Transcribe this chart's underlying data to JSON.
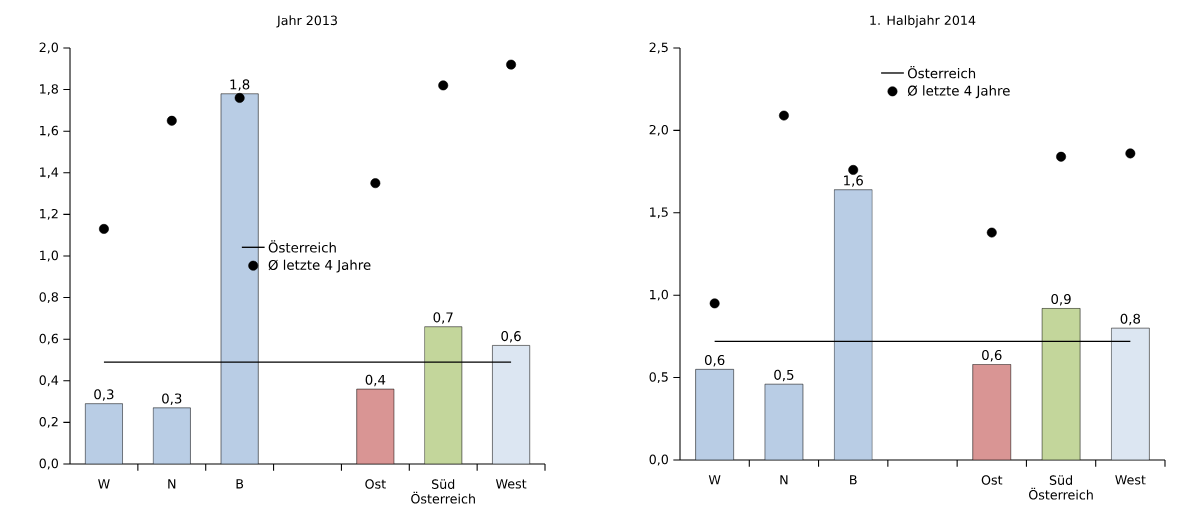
{
  "chart_data": [
    {
      "type": "bar",
      "title": "Jahr 2013",
      "categories": [
        "W",
        "N",
        "B",
        null,
        "Ost",
        "Süd Österreich",
        "West"
      ],
      "series": [
        {
          "colors": [
            "#b9cde5",
            "#b9cde5",
            "#b9cde5",
            "#b9cde5",
            "#d99594",
            "#c3d69b",
            "#dce6f2"
          ],
          "values": [
            0.29,
            0.27,
            1.78,
            null,
            0.36,
            0.66,
            0.57
          ],
          "value_labels": [
            "0,3",
            "0,3",
            "1,8",
            null,
            "0,4",
            "0,7",
            "0,6"
          ]
        },
        {
          "type": "line",
          "name": "Österreich",
          "color": "#000000",
          "values": [
            0.49,
            0.49,
            0.49,
            0.49,
            0.49,
            0.49,
            0.49
          ]
        },
        {
          "type": "scatter",
          "name": "Ø letzte 4 Jahre",
          "color": "#000000",
          "values": [
            1.13,
            1.65,
            1.76,
            null,
            1.35,
            1.82,
            1.92
          ]
        }
      ],
      "ylim": [
        0,
        2
      ],
      "yticks": [
        {
          "value": 0,
          "label": "0,0"
        },
        {
          "value": 0.2,
          "label": "0,2"
        },
        {
          "value": 0.4,
          "label": "0,4"
        },
        {
          "value": 0.6,
          "label": "0,6"
        },
        {
          "value": 0.8,
          "label": "0,8"
        },
        {
          "value": 1.0,
          "label": "1,0"
        },
        {
          "value": 1.2,
          "label": "1,2"
        },
        {
          "value": 1.4,
          "label": "1,4"
        },
        {
          "value": 1.6,
          "label": "1,6"
        },
        {
          "value": 1.8,
          "label": "1,8"
        },
        {
          "value": 2.0,
          "label": "2,0"
        }
      ],
      "legend": "center"
    },
    {
      "type": "bar",
      "title": "1. Halbjahr 2014",
      "categories": [
        "W",
        "N",
        "B",
        null,
        "Ost",
        "Süd Österreich",
        "West"
      ],
      "series": [
        {
          "colors": [
            "#b9cde5",
            "#b9cde5",
            "#b9cde5",
            "#b9cde5",
            "#d99594",
            "#c3d69b",
            "#dce6f2"
          ],
          "values": [
            0.55,
            0.46,
            1.64,
            null,
            0.58,
            0.92,
            0.8
          ],
          "value_labels": [
            "0,6",
            "0,5",
            "1,6",
            null,
            "0,6",
            "0,9",
            "0,8"
          ]
        },
        {
          "type": "line",
          "name": "Österreich",
          "color": "#000000",
          "values": [
            0.72,
            0.72,
            0.72,
            0.72,
            0.72,
            0.72,
            0.72
          ]
        },
        {
          "type": "scatter",
          "name": "Ø letzte 4 Jahre",
          "color": "#000000",
          "values": [
            0.95,
            2.09,
            1.76,
            null,
            1.38,
            1.84,
            1.86
          ]
        }
      ],
      "ylim": [
        0,
        2.5
      ],
      "yticks": [
        {
          "value": 0,
          "label": "0,0"
        },
        {
          "value": 0.5,
          "label": "0,5"
        },
        {
          "value": 1.0,
          "label": "1,0"
        },
        {
          "value": 1.5,
          "label": "1,5"
        },
        {
          "value": 2.0,
          "label": "2,0"
        },
        {
          "value": 2.5,
          "label": "2,5"
        }
      ],
      "legend": "top"
    }
  ]
}
